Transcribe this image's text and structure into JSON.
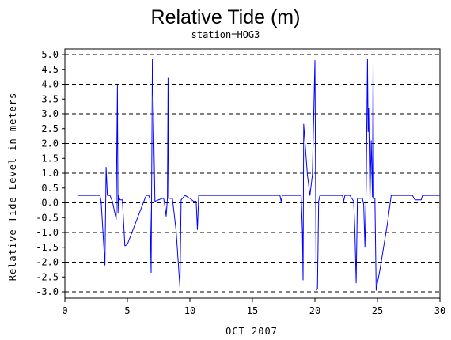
{
  "chart_data": {
    "type": "line",
    "title": "Relative Tide (m)",
    "subtitle": "station=HOG3",
    "xlabel": "OCT 2007",
    "ylabel": "Relative Tide Level in meters",
    "xlim": [
      0,
      30
    ],
    "ylim": [
      -3.0,
      5.0
    ],
    "xticks": [
      "0",
      "5",
      "10",
      "15",
      "20",
      "25",
      "30"
    ],
    "yticks": [
      "5.0",
      "4.5",
      "4.0",
      "3.5",
      "3.0",
      "2.5",
      "2.0",
      "1.5",
      "1.0",
      "0.5",
      "0.0",
      "-0.5",
      "-1.0",
      "-1.5",
      "-2.0",
      "-2.5",
      "-3.0"
    ],
    "gridlines_y": [
      -3.0,
      -2.0,
      -1.0,
      0.0,
      1.0,
      2.0,
      3.0,
      4.0,
      5.0
    ],
    "grid": "horizontal dashed",
    "line_color": "#0000ff",
    "series": [
      {
        "x": [
          1.0,
          2.8,
          2.9,
          3.2,
          3.3,
          3.4,
          3.6,
          3.8,
          4.1,
          4.2,
          4.25,
          4.3,
          4.4,
          4.6,
          4.8,
          5.0,
          6.5,
          6.7,
          6.8,
          6.9,
          7.0,
          7.2,
          7.8,
          7.9,
          8.0,
          8.1,
          8.2,
          8.25,
          8.3,
          8.6,
          8.9,
          9.2,
          9.3,
          9.4,
          9.6,
          10.0,
          10.3,
          10.5,
          10.6,
          10.7,
          10.8,
          17.2,
          17.3,
          17.4,
          18.7,
          18.9,
          19.0,
          19.05,
          19.1,
          19.4,
          19.6,
          19.8,
          20.0,
          20.1,
          20.2,
          20.3,
          20.4,
          20.6,
          22.2,
          22.3,
          22.4,
          22.7,
          22.8,
          23.1,
          23.2,
          23.3,
          23.4,
          23.5,
          23.8,
          23.9,
          24.0,
          24.1,
          24.2,
          24.25,
          24.3,
          24.4,
          24.5,
          24.6,
          24.65,
          24.7,
          24.8,
          24.9,
          25.0,
          25.2,
          25.8,
          26.1,
          26.4,
          27.6,
          27.8,
          28.0,
          28.5,
          28.6,
          30.0
        ],
        "y": [
          0.25,
          0.25,
          0.05,
          -2.1,
          1.2,
          0.25,
          0.25,
          0.05,
          -0.55,
          3.95,
          -0.35,
          0.25,
          0.1,
          0.1,
          -1.45,
          -1.4,
          0.25,
          0.25,
          0.15,
          -2.35,
          4.85,
          0.05,
          0.15,
          0.15,
          -0.1,
          -0.45,
          0.15,
          4.2,
          0.15,
          0.15,
          -0.95,
          -2.85,
          0.1,
          0.15,
          0.25,
          0.15,
          0.05,
          0.05,
          -0.9,
          0.25,
          0.25,
          0.25,
          0.05,
          0.25,
          0.25,
          0.25,
          -1.0,
          -2.6,
          2.65,
          0.95,
          0.25,
          0.95,
          4.8,
          -2.95,
          -2.9,
          0.05,
          0.25,
          0.25,
          0.25,
          0.05,
          0.25,
          0.25,
          0.25,
          0.05,
          -1.05,
          -2.7,
          0.15,
          0.15,
          0.15,
          -0.05,
          -1.5,
          0.55,
          4.85,
          2.4,
          3.2,
          0.1,
          2.1,
          0.2,
          4.75,
          0.15,
          0.15,
          -2.95,
          -2.7,
          -2.25,
          -0.7,
          0.25,
          0.25,
          0.25,
          0.25,
          0.1,
          0.1,
          0.25,
          0.25
        ]
      }
    ]
  }
}
